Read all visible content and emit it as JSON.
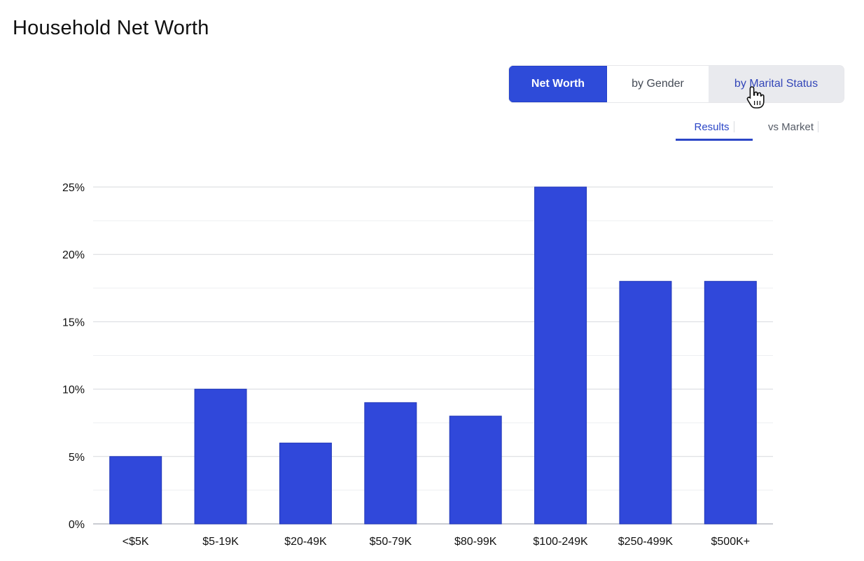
{
  "page_title": "Household Net Worth",
  "segmented_control": {
    "options": [
      "Net Worth",
      "by Gender",
      "by Marital Status"
    ],
    "active": "Net Worth",
    "hovered": "by Marital Status"
  },
  "subtabs": {
    "items": [
      "Results",
      "vs Market"
    ],
    "active": "Results"
  },
  "colors": {
    "accent": "#2e4bd9",
    "bar": "#3048da",
    "gridline": "#d7d9de",
    "axis_text": "#111111"
  },
  "chart_data": {
    "type": "bar",
    "title": "",
    "xlabel": "",
    "ylabel": "",
    "categories": [
      "<$5K",
      "$5-19K",
      "$20-49K",
      "$50-79K",
      "$80-99K",
      "$100-249K",
      "$250-499K",
      "$500K+"
    ],
    "values": [
      5,
      10,
      6,
      9,
      8,
      25,
      18,
      18
    ],
    "unit": "%",
    "ylim": [
      0,
      25
    ],
    "yticks": [
      0,
      5,
      10,
      15,
      20,
      25
    ],
    "ytick_labels": [
      "0%",
      "5%",
      "10%",
      "15%",
      "20%",
      "25%"
    ],
    "grid": true,
    "legend": "none"
  }
}
